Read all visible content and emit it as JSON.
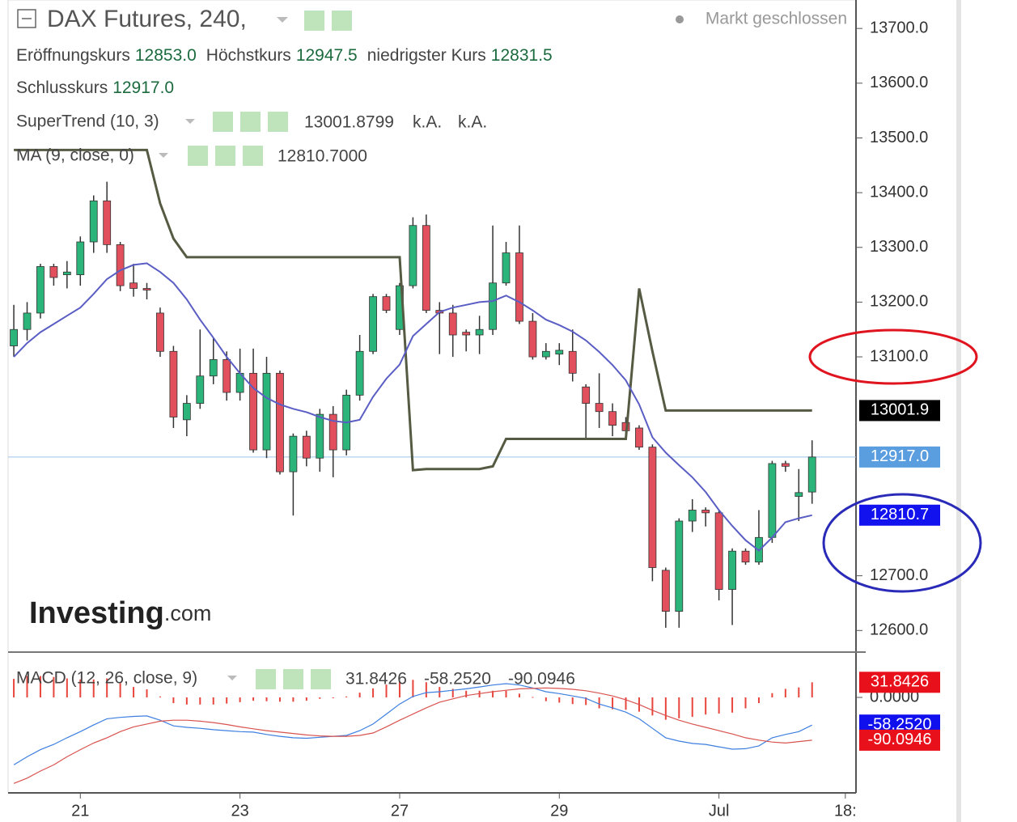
{
  "chart_data": [
    {
      "type": "candlestick",
      "title": "DAX Futures, 240,",
      "status": "Markt geschlossen",
      "watermark": [
        "Investing",
        ".com"
      ],
      "ohlc": [
        {
          "name": "Eröffnungskurs",
          "label": "12853.0"
        },
        {
          "name": "Höchstkurs",
          "label": "12947.5"
        },
        {
          "name": "niedrigster Kurs",
          "label": "12831.5"
        },
        {
          "name": "Schlusskurs",
          "label": "12917.0"
        }
      ],
      "up_color": "#2bb57a",
      "down_color": "#e2505d",
      "close_line_color": "#9cc4ea",
      "close_label": "12917.0",
      "close_label_color": "#5a9ee0",
      "x": [
        0,
        1,
        2,
        3,
        4,
        5,
        6,
        7,
        8,
        9,
        10,
        11,
        12,
        13,
        14,
        15,
        16,
        17,
        18,
        19,
        20,
        21,
        22,
        23,
        24,
        25,
        26,
        27,
        28,
        29,
        30,
        31,
        32,
        33,
        34,
        35,
        36,
        37,
        38,
        39,
        40,
        41,
        42,
        43,
        44,
        45,
        46,
        47,
        48,
        49,
        50,
        51,
        52,
        53,
        54,
        55,
        56,
        57,
        58,
        59,
        60
      ],
      "open": [
        13120,
        13150,
        13180,
        13265,
        13250,
        13250,
        13310,
        13385,
        13305,
        13235,
        13225,
        13180,
        13110,
        12985,
        13015,
        13065,
        13095,
        13035,
        13070,
        12930,
        13070,
        12890,
        12955,
        12915,
        12995,
        12930,
        13030,
        13110,
        13210,
        13150,
        13230,
        13340,
        13185,
        13180,
        13145,
        13140,
        13150,
        13235,
        13290,
        13165,
        13100,
        13105,
        13110,
        13045,
        13015,
        13000,
        12980,
        12970,
        12935,
        12710,
        12635,
        12800,
        12820,
        12815,
        12675,
        12745,
        12725,
        12770,
        12905,
        12845,
        12853
      ],
      "high": [
        13195,
        13200,
        13270,
        13270,
        13275,
        13320,
        13395,
        13420,
        13310,
        13270,
        13235,
        13190,
        13120,
        13030,
        13150,
        13135,
        13110,
        13115,
        13115,
        13100,
        13075,
        12960,
        12965,
        13005,
        13010,
        13040,
        13140,
        13215,
        13215,
        13235,
        13355,
        13360,
        13200,
        13195,
        13150,
        13175,
        13340,
        13310,
        13340,
        13180,
        13125,
        13125,
        13150,
        13050,
        13070,
        13015,
        12990,
        12975,
        12940,
        12715,
        12805,
        12840,
        12825,
        12820,
        12750,
        12750,
        12820,
        12910,
        12910,
        12895,
        12947.5
      ],
      "low": [
        13100,
        13130,
        13170,
        13230,
        13225,
        13230,
        13290,
        13290,
        13220,
        13210,
        13205,
        13100,
        12970,
        12955,
        13005,
        13050,
        13020,
        13020,
        12925,
        12915,
        12885,
        12810,
        12900,
        12890,
        12880,
        12920,
        13020,
        13105,
        13180,
        13140,
        13225,
        13180,
        13105,
        13100,
        13110,
        13105,
        13140,
        13230,
        13160,
        13095,
        13095,
        13085,
        13055,
        12950,
        12970,
        12955,
        12955,
        12930,
        12690,
        12605,
        12605,
        12780,
        12790,
        12655,
        12610,
        12720,
        12720,
        12760,
        12890,
        12800,
        12831.5
      ],
      "close": [
        13150,
        13180,
        13265,
        13245,
        13255,
        13310,
        13385,
        13305,
        13230,
        13225,
        13222,
        13110,
        12990,
        13015,
        13065,
        13095,
        13035,
        13070,
        12930,
        13070,
        12890,
        12955,
        12915,
        12995,
        12930,
        13030,
        13110,
        13210,
        13185,
        13230,
        13340,
        13185,
        13180,
        13140,
        13140,
        13150,
        13235,
        13290,
        13165,
        13100,
        13110,
        13112,
        13070,
        13015,
        13000,
        12975,
        12965,
        12935,
        12715,
        12635,
        12800,
        12820,
        12815,
        12675,
        12745,
        12725,
        12770,
        12905,
        12900,
        12852,
        12917
      ],
      "series": [
        {
          "name": "SuperTrend (10, 3)",
          "color": "#555a43",
          "legend_label": "13001.8799",
          "legend_label_color": "#111111",
          "legend_extra": [
            "k.A.",
            "k.A."
          ],
          "last_label": "13001.9",
          "label_color": "#000000",
          "values": [
            13478,
            13478,
            13478,
            13478,
            13478,
            13478,
            13478,
            13478,
            13478,
            13478,
            13478,
            13380,
            13316,
            13282,
            13282,
            13282,
            13282,
            13282,
            13282,
            13282,
            13282,
            13282,
            13282,
            13282,
            13282,
            13282,
            13282,
            13282,
            13282,
            13282,
            12893,
            12895,
            12895,
            12895,
            12895,
            12895,
            12900,
            12950,
            12950,
            12950,
            12950,
            12950,
            12950,
            12950,
            12950,
            12950,
            12950,
            13225,
            13110,
            13002,
            13002,
            13002,
            13002,
            13002,
            13002,
            13002,
            13002,
            13002,
            13002,
            13002,
            13001.8799
          ]
        },
        {
          "name": "MA (9, close, 0)",
          "color": "#5a5ec4",
          "legend_label": "12810.7000",
          "legend_label_color": "#1010c8",
          "last_label": "12810.7",
          "label_color": "#1212ee",
          "values": [
            13100,
            13125,
            13145,
            13160,
            13175,
            13190,
            13215,
            13242,
            13258,
            13268,
            13271,
            13255,
            13235,
            13205,
            13168,
            13135,
            13100,
            13070,
            13043,
            13025,
            13013,
            13005,
            12999,
            12990,
            12983,
            12980,
            12985,
            13027,
            13060,
            13086,
            13138,
            13160,
            13182,
            13190,
            13195,
            13200,
            13202,
            13212,
            13200,
            13185,
            13168,
            13158,
            13146,
            13130,
            13109,
            13085,
            13057,
            13013,
            12953,
            12925,
            12902,
            12880,
            12853,
            12820,
            12791,
            12765,
            12746,
            12770,
            12798,
            12805,
            12810.7
          ]
        }
      ],
      "xlim": [
        -0.43,
        63.3
      ],
      "ylim": [
        12562,
        13752
      ],
      "yticks": [
        {
          "value": 13700,
          "label": "13700.0"
        },
        {
          "value": 13600,
          "label": "13600.0"
        },
        {
          "value": 13500,
          "label": "13500.0"
        },
        {
          "value": 13400,
          "label": "13400.0"
        },
        {
          "value": 13300,
          "label": "13300.0"
        },
        {
          "value": 13200,
          "label": "13200.0"
        },
        {
          "value": 13100,
          "label": "13100.0"
        },
        {
          "value": 12700,
          "label": "12700.0"
        },
        {
          "value": 12600,
          "label": "12600.0"
        }
      ],
      "xticks": [
        {
          "value": 5,
          "label": "21"
        },
        {
          "value": 17,
          "label": "23"
        },
        {
          "value": 29,
          "label": "27"
        },
        {
          "value": 41,
          "label": "29"
        },
        {
          "value": 53,
          "label": "Jul"
        },
        {
          "value": 62.5,
          "label": "18:"
        }
      ]
    },
    {
      "type": "line",
      "title": "MACD (12, 26, close, 9)",
      "ylim": [
        -201,
        92
      ],
      "yticks": [
        {
          "value": 0,
          "label": "0.0000"
        }
      ],
      "series": [
        {
          "kind": "bar",
          "color": "#e8453c",
          "last_label": "31.8426",
          "label_color": "#e8101a",
          "values": [
            39,
            45,
            45,
            43,
            40,
            38,
            38,
            40,
            30,
            22,
            17,
            2,
            -12,
            -15,
            -15,
            -15,
            -13,
            -10,
            -7,
            -8,
            -9,
            -9,
            -7,
            -3,
            0,
            2,
            10,
            19,
            27,
            34,
            37,
            32,
            22,
            18,
            14,
            14,
            14,
            14,
            8,
            1,
            -8,
            -11,
            -14,
            -16,
            -23,
            -25,
            -26,
            -30,
            -38,
            -47,
            -44,
            -41,
            -36,
            -34,
            -32,
            -23,
            -12,
            9,
            18,
            21,
            31.8426
          ]
        },
        {
          "kind": "line",
          "color": "#3d7fe0",
          "last_label": "-58.2520",
          "label_color": "#1010ee",
          "values": [
            -142,
            -125,
            -110,
            -99,
            -85,
            -72,
            -58,
            -45,
            -42,
            -40,
            -39,
            -48,
            -60,
            -63,
            -65,
            -68,
            -70,
            -72,
            -73,
            -78,
            -82,
            -85,
            -86,
            -84,
            -82,
            -80,
            -70,
            -56,
            -35,
            -14,
            2,
            10,
            12,
            15,
            18,
            22,
            26,
            29,
            26,
            20,
            12,
            8,
            3,
            -2,
            -14,
            -22,
            -31,
            -45,
            -65,
            -85,
            -92,
            -97,
            -99,
            -104,
            -109,
            -108,
            -102,
            -85,
            -78,
            -72,
            -58.252
          ]
        },
        {
          "kind": "line",
          "color": "#d9534f",
          "last_label": "-90.0946",
          "label_color": "#e8101a",
          "values": [
            -181,
            -170,
            -155,
            -142,
            -125,
            -110,
            -96,
            -85,
            -72,
            -62,
            -56,
            -50,
            -48,
            -48,
            -50,
            -53,
            -57,
            -62,
            -66,
            -70,
            -73,
            -76,
            -79,
            -81,
            -82,
            -82,
            -80,
            -75,
            -62,
            -48,
            -35,
            -22,
            -10,
            -3,
            4,
            8,
            12,
            15,
            18,
            19,
            20,
            19,
            17,
            14,
            9,
            3,
            -5,
            -15,
            -27,
            -38,
            -48,
            -56,
            -63,
            -70,
            -77,
            -85,
            -90,
            -94,
            -96,
            -93,
            -90.0946
          ]
        }
      ]
    }
  ]
}
